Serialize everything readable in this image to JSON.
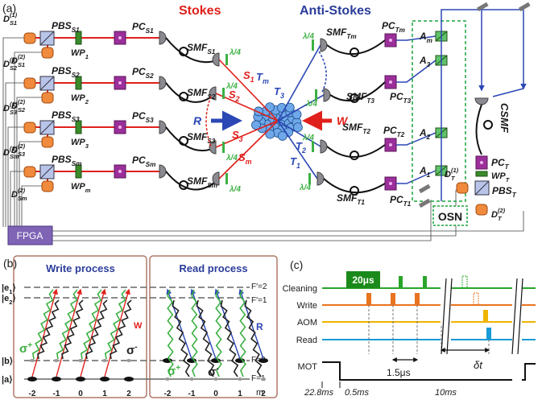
{
  "panel_a": {
    "label": "(a)",
    "stokes_title": "Stokes",
    "anti_stokes_title": "Anti-Stokes",
    "fpga": "FPGA",
    "osn": "OSN",
    "read_beam": "R",
    "write_beam": "W",
    "csmf": "CSMF",
    "quarter_wave": "λ/4",
    "stokes_rows": [
      {
        "d1": {
          "base": "D",
          "sub": "S1",
          "sup": "(1)"
        },
        "d2": {
          "base": "D",
          "sub": "S1",
          "sup": "(2)"
        },
        "pbs": {
          "base": "PBS",
          "sub": "S1"
        },
        "wp": {
          "base": "WP",
          "sub": "1"
        },
        "pc": {
          "base": "PC",
          "sub": "S1"
        },
        "smf": {
          "base": "SMF",
          "sub": "S1"
        },
        "channel": {
          "base": "S",
          "sub": "1"
        }
      },
      {
        "d1": {
          "base": "D",
          "sub": "S2",
          "sup": "(1)"
        },
        "d2": {
          "base": "D",
          "sub": "S2",
          "sup": "(2)"
        },
        "pbs": {
          "base": "PBS",
          "sub": "S2"
        },
        "wp": {
          "base": "WP",
          "sub": "2"
        },
        "pc": {
          "base": "PC",
          "sub": "S2"
        },
        "smf": {
          "base": "SMF",
          "sub": "S2"
        },
        "channel": {
          "base": "S",
          "sub": "2"
        }
      },
      {
        "d1": {
          "base": "D",
          "sub": "S3",
          "sup": "(1)"
        },
        "d2": {
          "base": "D",
          "sub": "S3",
          "sup": "(2)"
        },
        "pbs": {
          "base": "PBS",
          "sub": "S3"
        },
        "wp": {
          "base": "WP",
          "sub": "3"
        },
        "pc": {
          "base": "PC",
          "sub": "S3"
        },
        "smf": {
          "base": "SMF",
          "sub": "S3"
        },
        "channel": {
          "base": "S",
          "sub": "3"
        }
      },
      {
        "d1": {
          "base": "D",
          "sub": "Sm",
          "sup": "(1)"
        },
        "d2": {
          "base": "D",
          "sub": "Sm",
          "sup": "(2)"
        },
        "pbs": {
          "base": "PBS",
          "sub": "Sm"
        },
        "wp": {
          "base": "WP",
          "sub": "m"
        },
        "pc": {
          "base": "PC",
          "sub": "Sm"
        },
        "smf": {
          "base": "SMF",
          "sub": "Sm"
        },
        "channel": {
          "base": "S",
          "sub": "m"
        }
      }
    ],
    "anti_stokes_rows": [
      {
        "smf": {
          "base": "SMF",
          "sub": "Tm"
        },
        "pc": {
          "base": "PC",
          "sub": "Tm"
        },
        "a": {
          "base": "A",
          "sub": "m"
        },
        "channel": {
          "base": "T",
          "sub": "m"
        }
      },
      {
        "smf": {
          "base": "SMF",
          "sub": "T3"
        },
        "pc": {
          "base": "PC",
          "sub": "T3"
        },
        "a": {
          "base": "A",
          "sub": "3"
        },
        "channel": {
          "base": "T",
          "sub": "3"
        }
      },
      {
        "smf": {
          "base": "SMF",
          "sub": "T2"
        },
        "pc": {
          "base": "PC",
          "sub": "T2"
        },
        "a": {
          "base": "A",
          "sub": "2"
        },
        "channel": {
          "base": "T",
          "sub": "2"
        }
      },
      {
        "smf": {
          "base": "SMF",
          "sub": "T1"
        },
        "pc": {
          "base": "PC",
          "sub": "T1"
        },
        "a": {
          "base": "A",
          "sub": "1"
        },
        "channel": {
          "base": "T",
          "sub": "1"
        }
      }
    ],
    "trigger": {
      "pc": {
        "base": "PC",
        "sub": "T"
      },
      "wp": {
        "base": "WP",
        "sub": "T"
      },
      "d1": {
        "base": "D",
        "sub": "T",
        "sup": "(1)"
      },
      "pbs": {
        "base": "PBS",
        "sub": "T"
      },
      "d2": {
        "base": "D",
        "sub": "T",
        "sup": "(2)"
      }
    }
  },
  "panel_b": {
    "label": "(b)",
    "write_title": "Write process",
    "read_title": "Read process",
    "levels": [
      {
        "base": "|e",
        "sub": "1",
        "tail": "⟩"
      },
      {
        "base": "|e",
        "sub": "2",
        "tail": "⟩"
      },
      {
        "base": "|b⟩"
      },
      {
        "base": "|a⟩"
      }
    ],
    "f_labels": [
      "F′=2",
      "F′=1",
      "F=2",
      "F=1"
    ],
    "m_axis": "m",
    "m_values": [
      "-2",
      "-1",
      "0",
      "1",
      "2"
    ],
    "write_beam": "W",
    "read_beam": "R",
    "sigma_plus": {
      "base": "σ",
      "sup": "+"
    },
    "sigma_minus": {
      "base": "σ",
      "sup": "-"
    }
  },
  "panel_c": {
    "label": "(c)",
    "channels": [
      "Cleaning",
      "Write",
      "AOM",
      "Read",
      "MOT"
    ],
    "pulse_width": "20μs",
    "spacing": "1.5μs",
    "delay": "δt",
    "durations": [
      "22.8ms",
      "0.5ms",
      "10ms"
    ]
  }
}
